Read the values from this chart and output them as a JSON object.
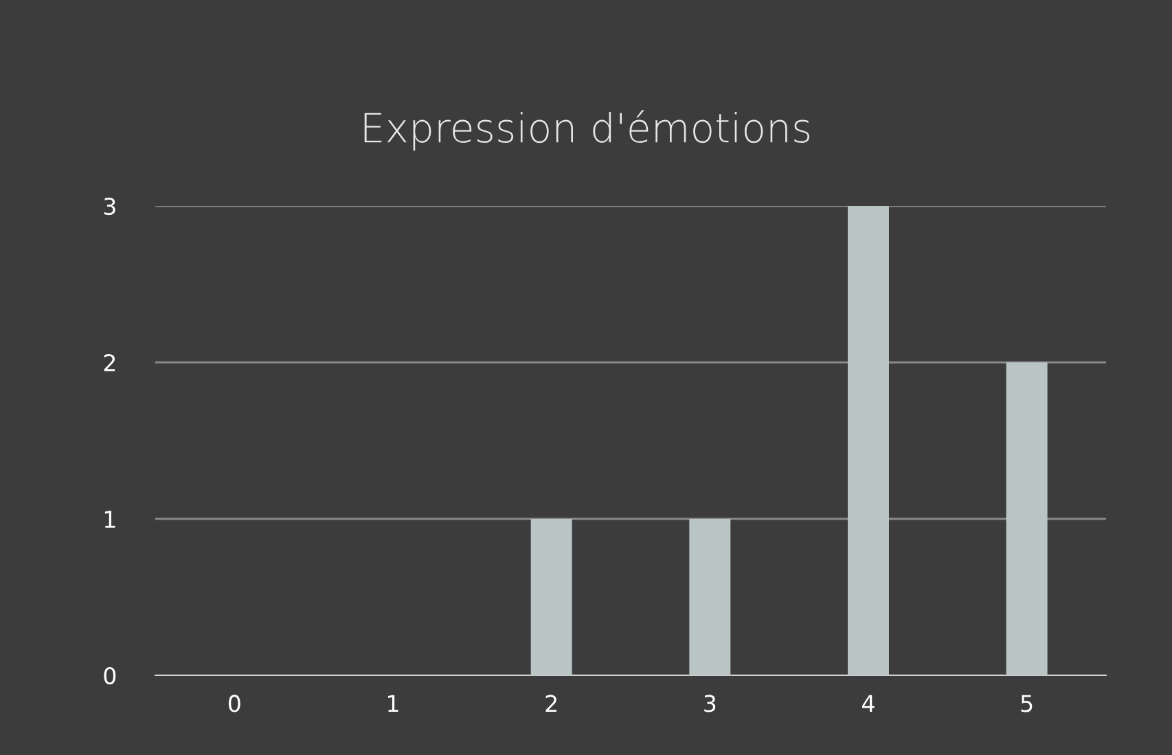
{
  "chart_data": {
    "type": "bar",
    "title": "Expression d'émotions",
    "categories": [
      "0",
      "1",
      "2",
      "3",
      "4",
      "5"
    ],
    "values": [
      0,
      0,
      1,
      1,
      3,
      2
    ],
    "color": "#b9c4c5",
    "ylim": [
      0,
      3
    ],
    "yticks": [
      0,
      1,
      2,
      3
    ],
    "grid": "y",
    "legend": false
  }
}
